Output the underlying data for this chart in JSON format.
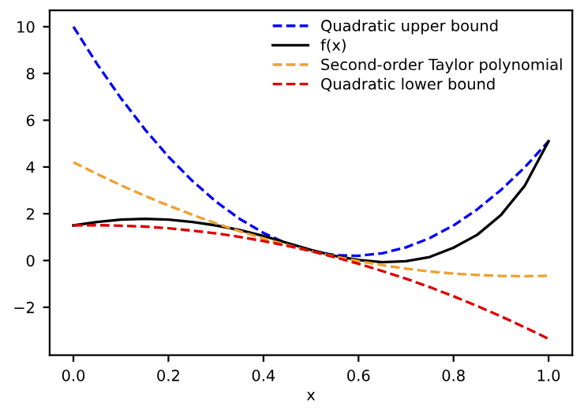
{
  "chart_data": {
    "type": "line",
    "xlabel": "x",
    "x": [
      0,
      0.05,
      0.1,
      0.15,
      0.2,
      0.25,
      0.3,
      0.35,
      0.4,
      0.45,
      0.5,
      0.55,
      0.6,
      0.65,
      0.7,
      0.75,
      0.8,
      0.85,
      0.9,
      0.95,
      1
    ],
    "series": [
      {
        "name": "Quadratic upper bound",
        "color": "#0000ff",
        "line_style": "dashed",
        "values": [
          10,
          8.4,
          6.94,
          5.62,
          4.44,
          3.41,
          2.52,
          1.78,
          1.18,
          0.72,
          0.4,
          0.23,
          0.2,
          0.31,
          0.56,
          0.96,
          1.5,
          2.19,
          3.02,
          3.99,
          5.1
        ]
      },
      {
        "name": "f(x)",
        "color": "#000000",
        "line_style": "solid",
        "values": [
          1.5,
          1.65,
          1.75,
          1.78,
          1.75,
          1.65,
          1.5,
          1.3,
          1.05,
          0.75,
          0.45,
          0.2,
          0.02,
          -0.07,
          -0.03,
          0.15,
          0.55,
          1.1,
          1.95,
          3.2,
          5.1
        ]
      },
      {
        "name": "Second-order Taylor polynomial",
        "color": "#f0a030",
        "line_style": "dashed",
        "values": [
          4.2,
          3.7,
          3.22,
          2.77,
          2.35,
          1.96,
          1.59,
          1.25,
          0.94,
          0.66,
          0.4,
          0.17,
          -0.03,
          -0.2,
          -0.35,
          -0.47,
          -0.56,
          -0.62,
          -0.66,
          -0.67,
          -0.65
        ]
      },
      {
        "name": "Quadratic lower bound",
        "color": "#dd0000",
        "line_style": "dashed",
        "values": [
          1.5,
          1.51,
          1.49,
          1.45,
          1.38,
          1.28,
          1.16,
          1.01,
          0.83,
          0.63,
          0.4,
          0.14,
          -0.14,
          -0.45,
          -0.78,
          -1.14,
          -1.53,
          -1.95,
          -2.39,
          -2.86,
          -3.35
        ]
      }
    ],
    "xlim": [
      -0.05,
      1.05
    ],
    "ylim": [
      -4.05,
      10.7
    ],
    "xticks": [
      {
        "value": 0,
        "label": "0.0"
      },
      {
        "value": 0.2,
        "label": "0.2"
      },
      {
        "value": 0.4,
        "label": "0.4"
      },
      {
        "value": 0.6,
        "label": "0.6"
      },
      {
        "value": 0.8,
        "label": "0.8"
      },
      {
        "value": 1,
        "label": "1.0"
      }
    ],
    "yticks": [
      {
        "value": -2,
        "label": "−2"
      },
      0,
      2,
      4,
      6,
      8,
      10
    ],
    "grid": false,
    "legend": "top right",
    "marker": "none"
  }
}
